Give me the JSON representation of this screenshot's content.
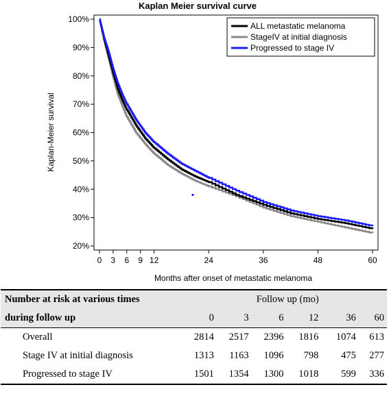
{
  "chart_data": {
    "type": "line",
    "title": "Kaplan Meier survival curve",
    "xlabel": "Months after onset of metastatic melanoma",
    "ylabel": "Kaplan-Meier survival",
    "xlim": [
      0,
      60
    ],
    "ylim": [
      0.2,
      1.0
    ],
    "x_ticks": [
      0,
      3,
      6,
      9,
      12,
      24,
      36,
      48,
      60
    ],
    "x_tick_labels": [
      "0",
      "3",
      "6",
      "9",
      "12",
      "24",
      "36",
      "48",
      "60"
    ],
    "y_ticks": [
      0.2,
      0.3,
      0.4,
      0.5,
      0.6,
      0.7,
      0.8,
      0.9,
      1.0
    ],
    "y_tick_labels": [
      "20%",
      "30%",
      "40%",
      "50%",
      "60%",
      "70%",
      "80%",
      "90%",
      "100%"
    ],
    "grid": false,
    "legend_position": "top-right",
    "series": [
      {
        "name": "ALL metastatic melanoma",
        "color": "#000000",
        "x": [
          0,
          1,
          2,
          3,
          4,
          5,
          6,
          8,
          10,
          12,
          15,
          18,
          21,
          24,
          30,
          36,
          42,
          48,
          54,
          60
        ],
        "y": [
          1.0,
          0.93,
          0.87,
          0.81,
          0.755,
          0.715,
          0.68,
          0.625,
          0.58,
          0.545,
          0.505,
          0.47,
          0.445,
          0.425,
          0.38,
          0.345,
          0.315,
          0.295,
          0.28,
          0.26
        ]
      },
      {
        "name": "StageIV at initial diagnosis",
        "color": "#888888",
        "x": [
          0,
          1,
          2,
          3,
          4,
          5,
          6,
          8,
          10,
          12,
          15,
          18,
          21,
          24,
          30,
          36,
          42,
          48,
          54,
          60
        ],
        "y": [
          1.0,
          0.925,
          0.86,
          0.795,
          0.735,
          0.695,
          0.655,
          0.6,
          0.56,
          0.525,
          0.485,
          0.455,
          0.43,
          0.41,
          0.375,
          0.335,
          0.305,
          0.285,
          0.265,
          0.245
        ]
      },
      {
        "name": "Progressed to stage IV",
        "color": "#1a1aff",
        "x": [
          0,
          1,
          2,
          3,
          4,
          5,
          6,
          8,
          10,
          12,
          15,
          18,
          21,
          24,
          30,
          36,
          42,
          48,
          54,
          60
        ],
        "y": [
          1.0,
          0.935,
          0.885,
          0.825,
          0.775,
          0.735,
          0.7,
          0.645,
          0.6,
          0.565,
          0.525,
          0.49,
          0.465,
          0.44,
          0.395,
          0.355,
          0.325,
          0.305,
          0.29,
          0.27
        ]
      }
    ],
    "annotations": [
      {
        "x": 20.5,
        "y": 0.38,
        "color": "#1a1aff"
      }
    ]
  },
  "risk_table": {
    "header_left_line1": "Number at risk at various times",
    "header_left_line2": "during follow up",
    "header_group": "Follow up (mo)",
    "columns": [
      "0",
      "3",
      "6",
      "12",
      "36",
      "60"
    ],
    "rows": [
      {
        "label": "Overall",
        "values": [
          "2814",
          "2517",
          "2396",
          "1816",
          "1074",
          "613"
        ]
      },
      {
        "label": "Stage IV at initial diagnosis",
        "values": [
          "1313",
          "1163",
          "1096",
          "798",
          "475",
          "277"
        ]
      },
      {
        "label": "Progressed to stage IV",
        "values": [
          "1501",
          "1354",
          "1300",
          "1018",
          "599",
          "336"
        ]
      }
    ]
  }
}
